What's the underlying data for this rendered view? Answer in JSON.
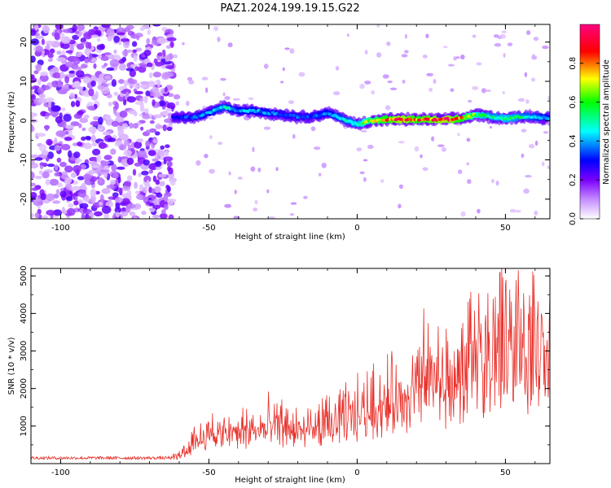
{
  "title": "PAZ1.2024.199.19.15.G22",
  "chart_data": [
    {
      "type": "heatmap",
      "xlabel": "Height of straight line (km)",
      "ylabel": "Frequency (Hz)",
      "xlim": [
        -110,
        65
      ],
      "ylim": [
        -25,
        24.5
      ],
      "xticks": [
        -100,
        -50,
        0,
        50
      ],
      "yticks": [
        -20,
        -10,
        0,
        10,
        20
      ],
      "xtick_labels": [
        "-100",
        "-50",
        "0",
        "50"
      ],
      "ytick_labels": [
        "-20",
        "-10",
        "0",
        "10",
        "20"
      ],
      "colorbar": {
        "label": "Normalized spectral amplitude",
        "range": [
          0,
          1
        ],
        "ticks": [
          0.0,
          0.2,
          0.4,
          0.6,
          0.8
        ],
        "tick_labels": [
          "0.0",
          "0.2",
          "0.4",
          "0.6",
          "0.8"
        ],
        "colormap": [
          "#ffffff",
          "#7a00ff",
          "#0000ff",
          "#00ffff",
          "#00ff00",
          "#ffff00",
          "#ff0000",
          "#ff0080"
        ]
      },
      "ridge": {
        "x": [
          -62,
          -55,
          -50,
          -45,
          -40,
          -35,
          -30,
          -25,
          -20,
          -15,
          -10,
          -5,
          0,
          5,
          10,
          15,
          20,
          25,
          30,
          35,
          40,
          45,
          50,
          55,
          60,
          65
        ],
        "y": [
          0.8,
          0.8,
          2.0,
          3.5,
          2.5,
          2.5,
          2.0,
          1.5,
          1.0,
          1.0,
          2.0,
          0.5,
          -1.0,
          0.0,
          0.3,
          0.3,
          0.3,
          0.3,
          0.3,
          0.5,
          1.5,
          1.0,
          0.5,
          1.0,
          1.0,
          0.5
        ],
        "amp": [
          0.3,
          0.35,
          0.4,
          0.45,
          0.4,
          0.4,
          0.38,
          0.35,
          0.35,
          0.35,
          0.4,
          0.45,
          0.5,
          0.7,
          0.8,
          0.9,
          0.8,
          0.85,
          0.9,
          0.8,
          0.6,
          0.5,
          0.55,
          0.5,
          0.45,
          0.4
        ]
      }
    },
    {
      "type": "line",
      "xlabel": "Height of straight line (km)",
      "ylabel": "SNR (10 * v/v)",
      "xlim": [
        -110,
        65
      ],
      "ylim": [
        0,
        5200
      ],
      "xticks": [
        -100,
        -50,
        0,
        50
      ],
      "yticks": [
        1000,
        2000,
        3000,
        4000,
        5000
      ],
      "xtick_labels": [
        "-100",
        "-50",
        "0",
        "50"
      ],
      "ytick_labels": [
        "1000",
        "2000",
        "3000",
        "4000",
        "5000"
      ],
      "color": "#e8302a",
      "envelope": {
        "x": [
          -110,
          -62,
          -58,
          -55,
          -50,
          -45,
          -40,
          -35,
          -30,
          -25,
          -20,
          -15,
          -10,
          -5,
          0,
          5,
          10,
          15,
          20,
          25,
          30,
          35,
          38,
          40,
          45,
          50,
          55,
          60,
          65
        ],
        "y": [
          150,
          150,
          300,
          600,
          750,
          700,
          800,
          850,
          900,
          900,
          800,
          850,
          1000,
          1100,
          1200,
          1400,
          1500,
          1500,
          1900,
          2200,
          2000,
          2000,
          2600,
          2600,
          2700,
          2900,
          2800,
          2700,
          2500
        ]
      }
    }
  ]
}
